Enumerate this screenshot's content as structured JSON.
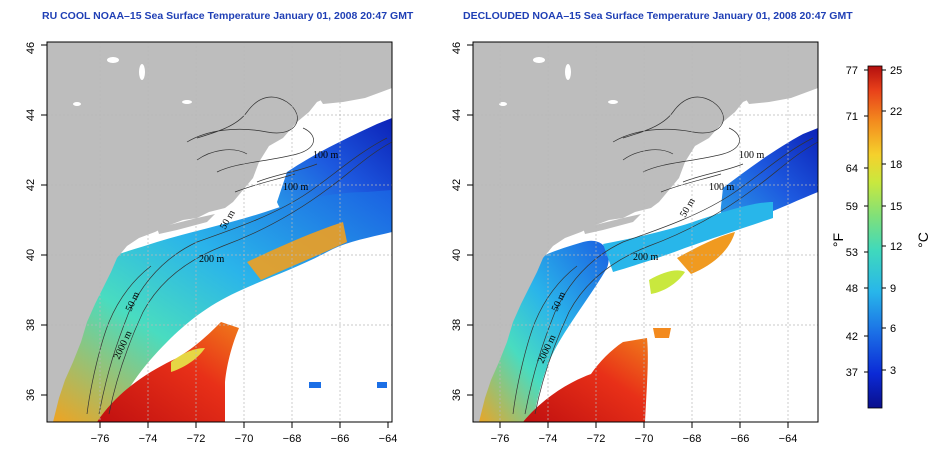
{
  "panels": [
    {
      "title": "RU COOL NOAA–15 Sea Surface Temperature January 01, 2008 20:47 GMT",
      "contour_labels": [
        "100 m",
        "100 m",
        "50 m",
        "200 m",
        "50 m",
        "2000 m"
      ]
    },
    {
      "title": "DECLOUDED NOAA–15 Sea Surface Temperature January 01, 2008 20:47 GMT",
      "contour_labels": [
        "100 m",
        "100 m",
        "50 m",
        "200 m",
        "50 m",
        "2000 m"
      ]
    }
  ],
  "axes": {
    "x_ticks": [
      "−76",
      "−74",
      "−72",
      "−70",
      "−68",
      "−66",
      "−64"
    ],
    "y_ticks": [
      "36",
      "38",
      "40",
      "42",
      "44",
      "46"
    ]
  },
  "colorbar": {
    "f_label": "°F",
    "c_label": "°C",
    "f_ticks": [
      "77",
      "71",
      "64",
      "59",
      "53",
      "48",
      "42",
      "37"
    ],
    "c_ticks": [
      "25",
      "22",
      "18",
      "15",
      "12",
      "9",
      "6",
      "3"
    ],
    "colors": [
      "#0a0f8c",
      "#0b2ad6",
      "#1b6fe6",
      "#28b6ea",
      "#3fd9bd",
      "#7fe07a",
      "#c9e83e",
      "#f5d12c",
      "#f38a1e",
      "#e8401a",
      "#b30f0f"
    ]
  },
  "colors": {
    "land": "#bdbdbd",
    "title": "#1f3fb5",
    "grid": "#b8b8b8"
  }
}
